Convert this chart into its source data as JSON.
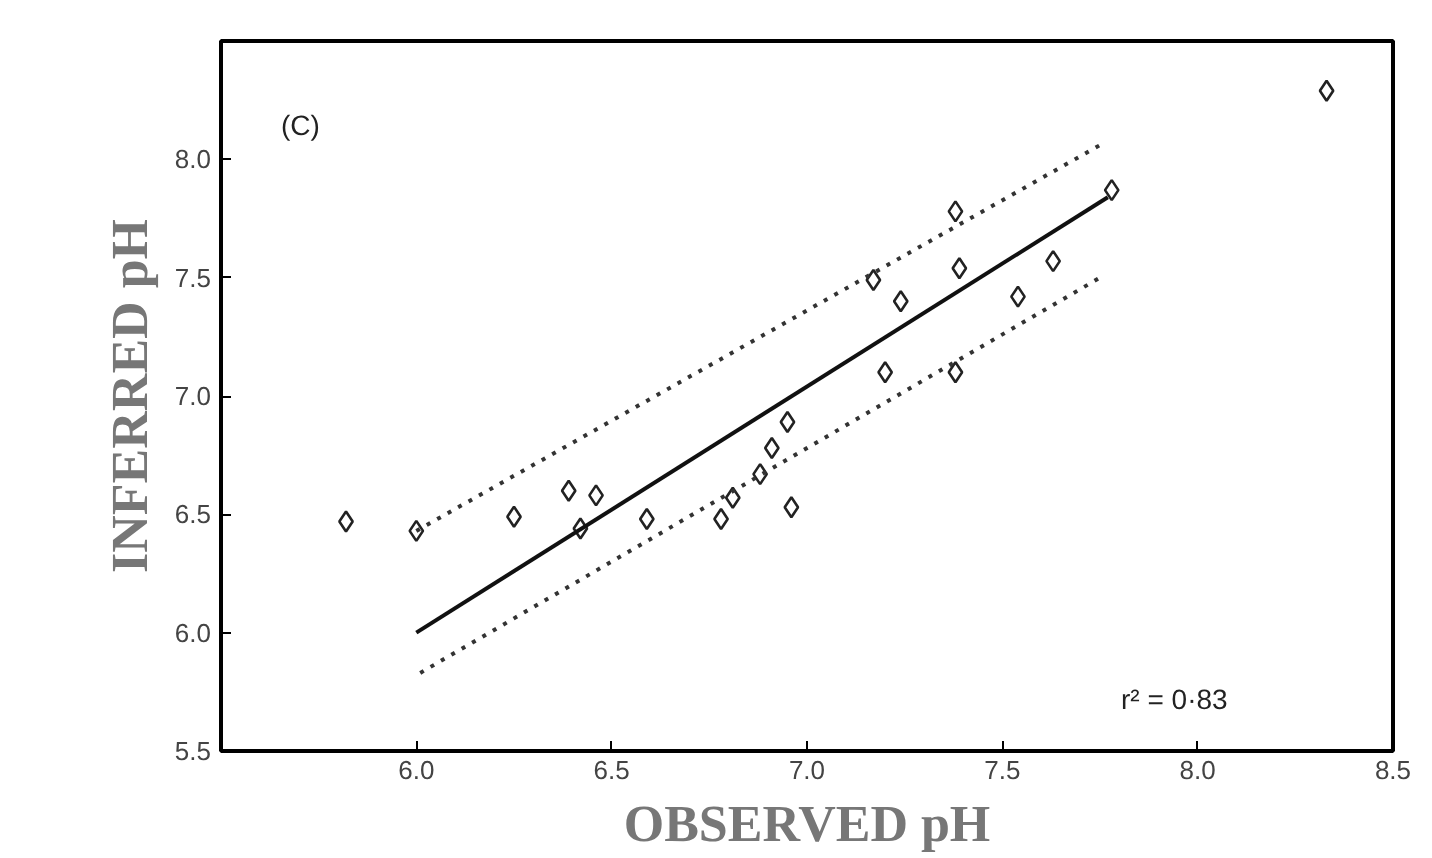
{
  "chart_data": {
    "type": "scatter",
    "xlabel": "OBSERVED pH",
    "ylabel": "INFERRED pH",
    "xlim": [
      5.5,
      8.5
    ],
    "ylim": [
      5.5,
      8.5
    ],
    "xticks": [
      {
        "value": 6,
        "label": "6.0"
      },
      6.5,
      {
        "value": 7,
        "label": "7.0"
      },
      7.5,
      {
        "value": 8,
        "label": "8.0"
      },
      8.5
    ],
    "yticks": [
      5.5,
      {
        "value": 6,
        "label": "6.0"
      },
      6.5,
      {
        "value": 7,
        "label": "7.0"
      },
      7.5,
      {
        "value": 8,
        "label": "8.0"
      }
    ],
    "grid": false,
    "marker": "diamond",
    "series": [
      {
        "color": "#222222",
        "x": [
          5.82,
          6.0,
          6.25,
          6.39,
          6.46,
          6.42,
          6.59,
          6.78,
          6.81,
          6.88,
          6.91,
          6.95,
          6.96,
          7.17,
          7.24,
          7.2,
          7.39,
          7.38,
          7.38,
          7.54,
          7.63,
          7.78,
          8.33
        ],
        "values": [
          6.47,
          6.43,
          6.49,
          6.6,
          6.58,
          6.44,
          6.48,
          6.48,
          6.57,
          6.67,
          6.78,
          6.89,
          6.53,
          7.49,
          7.4,
          7.1,
          7.54,
          7.78,
          7.1,
          7.42,
          7.57,
          7.87,
          8.29
        ]
      },
      {
        "type": "line",
        "color": "#111111",
        "line_style": "solid",
        "marker": "none",
        "x": [
          6.0,
          7.77
        ],
        "values": [
          6.0,
          7.84
        ]
      },
      {
        "type": "line",
        "color": "#333333",
        "line_style": "dotted",
        "marker": "none",
        "x": [
          6.0,
          7.75
        ],
        "values": [
          6.43,
          8.06
        ]
      },
      {
        "type": "line",
        "color": "#333333",
        "line_style": "dotted",
        "marker": "none",
        "x": [
          6.01,
          7.75
        ],
        "values": [
          5.83,
          7.5
        ]
      }
    ],
    "annotations": [
      "(C)",
      "r² = 0·83"
    ]
  }
}
